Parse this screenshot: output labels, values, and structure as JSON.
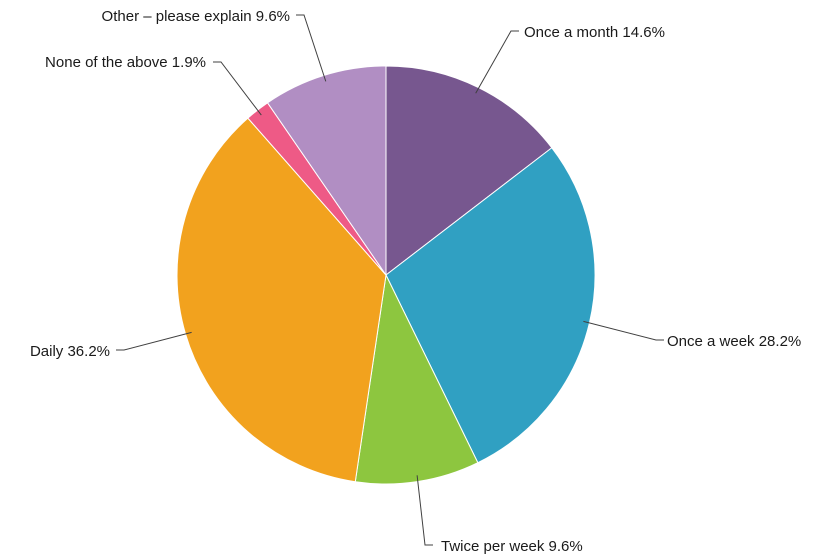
{
  "chart_data": {
    "type": "pie",
    "title": "",
    "start_angle_deg": 0,
    "direction": "clockwise",
    "slices": [
      {
        "label": "Once a month 14.6%",
        "category": "Once a month",
        "value": 14.6,
        "color": "#77578f"
      },
      {
        "label": "Once a week 28.2%",
        "category": "Once a week",
        "value": 28.2,
        "color": "#30a0c2"
      },
      {
        "label": "Twice per week 9.6%",
        "category": "Twice per week",
        "value": 9.6,
        "color": "#8dc63f"
      },
      {
        "label": "Daily 36.2%",
        "category": "Daily",
        "value": 36.2,
        "color": "#f2a21e"
      },
      {
        "label": "None of the above 1.9%",
        "category": "None of the above",
        "value": 1.9,
        "color": "#ee5a86"
      },
      {
        "label": "Other – please explain 9.6%",
        "category": "Other – please explain",
        "value": 9.6,
        "color": "#b18ec3"
      }
    ]
  }
}
